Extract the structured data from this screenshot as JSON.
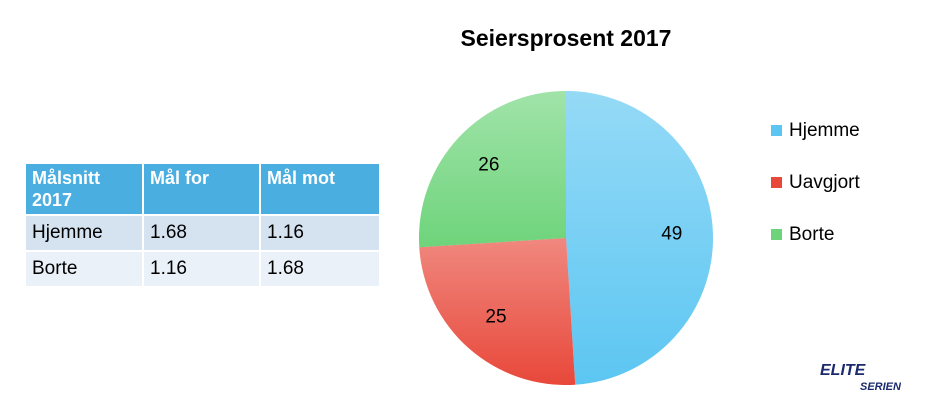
{
  "chart_data": {
    "type": "pie",
    "title": "Seiersprosent 2017",
    "categories": [
      "Hjemme",
      "Uavgjort",
      "Borte"
    ],
    "values": [
      49,
      25,
      26
    ],
    "colors": [
      "#5cc6f2",
      "#e8483a",
      "#6ed47b"
    ]
  },
  "table": {
    "header": [
      "Målsnitt 2017",
      "Mål for",
      "Mål mot"
    ],
    "rows": [
      [
        "Hjemme",
        "1.68",
        "1.16"
      ],
      [
        "Borte",
        "1.16",
        "1.68"
      ]
    ]
  },
  "logo": {
    "line1": "ELITE",
    "line2": "SERIEN"
  }
}
